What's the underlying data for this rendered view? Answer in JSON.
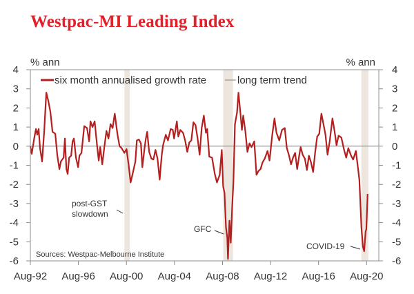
{
  "chart_data": {
    "type": "line",
    "title": "Westpac-MI Leading Index",
    "ylabel_left": "% ann",
    "ylabel_right": "% ann",
    "xlabel": "",
    "ylim": [
      -6,
      4
    ],
    "yticks": [
      4,
      3,
      2,
      1,
      0,
      -1,
      -2,
      -3,
      -4,
      -5,
      -6
    ],
    "xlim_years": [
      1992.583,
      2021.6
    ],
    "xticks": [
      {
        "label": "Aug-92",
        "year": 1992.583
      },
      {
        "label": "Aug-96",
        "year": 1996.583
      },
      {
        "label": "Aug-00",
        "year": 2000.583
      },
      {
        "label": "Aug-04",
        "year": 2004.583
      },
      {
        "label": "Aug-08",
        "year": 2008.583
      },
      {
        "label": "Aug-12",
        "year": 2012.583
      },
      {
        "label": "Aug-16",
        "year": 2016.583
      },
      {
        "label": "Aug-20",
        "year": 2020.583
      }
    ],
    "grid": false,
    "legend": {
      "placement": "top-left",
      "entries": [
        {
          "name": "six month annualised growth rate",
          "color": "#b3201f"
        },
        {
          "name": "long term trend",
          "color": "#808080"
        }
      ]
    },
    "series": [
      {
        "name": "six month annualised growth rate",
        "color": "#b3201f",
        "points": [
          [
            1992.58,
            0
          ],
          [
            1992.7,
            -0.4
          ],
          [
            1992.93,
            0.5
          ],
          [
            1993.05,
            0.9
          ],
          [
            1993.16,
            0.6
          ],
          [
            1993.27,
            0.9
          ],
          [
            1993.39,
            -0.1
          ],
          [
            1993.56,
            -0.8
          ],
          [
            1993.74,
            0.8
          ],
          [
            1993.91,
            2.8
          ],
          [
            1994.08,
            2.35
          ],
          [
            1994.25,
            1.8
          ],
          [
            1994.43,
            0.75
          ],
          [
            1994.66,
            0.65
          ],
          [
            1994.83,
            -0.5
          ],
          [
            1995.0,
            -1.2
          ],
          [
            1995.12,
            -0.8
          ],
          [
            1995.35,
            -0.6
          ],
          [
            1995.46,
            0.4
          ],
          [
            1995.58,
            -1.2
          ],
          [
            1995.69,
            -1.45
          ],
          [
            1995.81,
            -0.6
          ],
          [
            1995.98,
            -0.5
          ],
          [
            1996.1,
            0.25
          ],
          [
            1996.21,
            0.4
          ],
          [
            1996.38,
            -0.6
          ],
          [
            1996.56,
            -1.1
          ],
          [
            1996.67,
            -0.5
          ],
          [
            1996.84,
            -0.35
          ],
          [
            1997.07,
            1.05
          ],
          [
            1997.3,
            0.95
          ],
          [
            1997.48,
            0.25
          ],
          [
            1997.59,
            1.3
          ],
          [
            1997.76,
            1.0
          ],
          [
            1997.94,
            1.3
          ],
          [
            1998.11,
            0.2
          ],
          [
            1998.28,
            -0.75
          ],
          [
            1998.4,
            -0.05
          ],
          [
            1998.57,
            -0.95
          ],
          [
            1998.74,
            -0.05
          ],
          [
            1998.92,
            0.8
          ],
          [
            1999.09,
            0.4
          ],
          [
            1999.26,
            1.15
          ],
          [
            1999.43,
            0.95
          ],
          [
            1999.61,
            1.7
          ],
          [
            1999.84,
            0.6
          ],
          [
            2000.01,
            0
          ],
          [
            2000.18,
            -0.1
          ],
          [
            2000.41,
            -0.35
          ],
          [
            2000.59,
            -0.15
          ],
          [
            2000.76,
            -0.95
          ],
          [
            2000.93,
            -1.9
          ],
          [
            2001.1,
            -1.45
          ],
          [
            2001.33,
            -0.8
          ],
          [
            2001.45,
            0.3
          ],
          [
            2001.62,
            0.35
          ],
          [
            2001.79,
            0.15
          ],
          [
            2001.91,
            -1.1
          ],
          [
            2002.08,
            -0.15
          ],
          [
            2002.2,
            0.4
          ],
          [
            2002.31,
            0.75
          ],
          [
            2002.48,
            -0.3
          ],
          [
            2002.66,
            -0.65
          ],
          [
            2002.83,
            -0.7
          ],
          [
            2003.0,
            -0.2
          ],
          [
            2003.17,
            -0.65
          ],
          [
            2003.35,
            -1.75
          ],
          [
            2003.52,
            -0.5
          ],
          [
            2003.63,
            0.05
          ],
          [
            2003.86,
            0.6
          ],
          [
            2004.04,
            0.3
          ],
          [
            2004.27,
            0.9
          ],
          [
            2004.44,
            0.85
          ],
          [
            2004.55,
            0.4
          ],
          [
            2004.78,
            1.3
          ],
          [
            2004.9,
            0.5
          ],
          [
            2005.07,
            0.85
          ],
          [
            2005.3,
            0.7
          ],
          [
            2005.47,
            0.3
          ],
          [
            2005.65,
            -0.3
          ],
          [
            2005.82,
            0.2
          ],
          [
            2005.99,
            0.3
          ],
          [
            2006.16,
            1.25
          ],
          [
            2006.34,
            1.1
          ],
          [
            2006.51,
            0.4
          ],
          [
            2006.68,
            -0.45
          ],
          [
            2006.85,
            0.95
          ],
          [
            2007.03,
            1.6
          ],
          [
            2007.2,
            0.7
          ],
          [
            2007.31,
            0.9
          ],
          [
            2007.48,
            -0.55
          ],
          [
            2007.71,
            -0.6
          ],
          [
            2007.94,
            -1.45
          ],
          [
            2008.12,
            -1.9
          ],
          [
            2008.35,
            -1.5
          ],
          [
            2008.52,
            -0.2
          ],
          [
            2008.64,
            -2.1
          ],
          [
            2008.75,
            -2.45
          ],
          [
            2008.87,
            -4.25
          ],
          [
            2008.98,
            -4.8
          ],
          [
            2009.04,
            -5.9
          ],
          [
            2009.16,
            -3.9
          ],
          [
            2009.27,
            -5.05
          ],
          [
            2009.39,
            -3.2
          ],
          [
            2009.5,
            -1.75
          ],
          [
            2009.62,
            1.15
          ],
          [
            2009.79,
            1.75
          ],
          [
            2009.91,
            2.8
          ],
          [
            2010.08,
            1.7
          ],
          [
            2010.2,
            0.85
          ],
          [
            2010.31,
            1.6
          ],
          [
            2010.48,
            0.8
          ],
          [
            2010.66,
            -0.3
          ],
          [
            2010.83,
            0.15
          ],
          [
            2011.0,
            -0.05
          ],
          [
            2011.23,
            0.25
          ],
          [
            2011.41,
            -1.5
          ],
          [
            2011.58,
            -1.3
          ],
          [
            2011.75,
            -1.2
          ],
          [
            2011.92,
            -0.85
          ],
          [
            2012.1,
            -0.65
          ],
          [
            2012.33,
            -0.25
          ],
          [
            2012.5,
            -0.75
          ],
          [
            2012.73,
            0.6
          ],
          [
            2012.91,
            1.45
          ],
          [
            2013.08,
            0.7
          ],
          [
            2013.31,
            0.3
          ],
          [
            2013.54,
            0.85
          ],
          [
            2013.77,
            0.95
          ],
          [
            2013.94,
            -0.1
          ],
          [
            2014.11,
            -0.45
          ],
          [
            2014.29,
            -0.95
          ],
          [
            2014.46,
            -0.6
          ],
          [
            2014.63,
            -0.35
          ],
          [
            2014.8,
            -1.2
          ],
          [
            2014.98,
            -0.45
          ],
          [
            2015.09,
            -0.05
          ],
          [
            2015.26,
            -0.45
          ],
          [
            2015.44,
            -0.65
          ],
          [
            2015.61,
            -1.25
          ],
          [
            2015.78,
            -0.5
          ],
          [
            2015.95,
            -0.85
          ],
          [
            2016.13,
            -1.35
          ],
          [
            2016.3,
            -0.3
          ],
          [
            2016.47,
            0.5
          ],
          [
            2016.64,
            0.65
          ],
          [
            2016.82,
            1.7
          ],
          [
            2016.99,
            1.15
          ],
          [
            2017.16,
            0.6
          ],
          [
            2017.33,
            -0.45
          ],
          [
            2017.51,
            0.25
          ],
          [
            2017.74,
            1.45
          ],
          [
            2017.91,
            0.8
          ],
          [
            2018.08,
            0.05
          ],
          [
            2018.25,
            0.55
          ],
          [
            2018.48,
            0.45
          ],
          [
            2018.71,
            -0.2
          ],
          [
            2018.89,
            -0.6
          ],
          [
            2019.06,
            -0.1
          ],
          [
            2019.29,
            -0.5
          ],
          [
            2019.46,
            -0.7
          ],
          [
            2019.69,
            -0.25
          ],
          [
            2019.81,
            -0.85
          ],
          [
            2019.98,
            -1.75
          ],
          [
            2020.15,
            -4.25
          ],
          [
            2020.27,
            -5.25
          ],
          [
            2020.38,
            -5.5
          ],
          [
            2020.5,
            -4.45
          ],
          [
            2020.56,
            -4.35
          ],
          [
            2020.67,
            -2.5
          ]
        ]
      },
      {
        "name": "long term trend",
        "color": "#808080",
        "value": 0
      }
    ],
    "shaded_periods": [
      {
        "name": "post-GST slowdown",
        "start_year": 2000.41,
        "end_year": 2000.87
      },
      {
        "name": "GFC",
        "start_year": 2008.64,
        "end_year": 2009.45
      },
      {
        "name": "COVID-19",
        "start_year": 2020.15,
        "end_year": 2020.73
      }
    ],
    "annotations": [
      {
        "text_lines": [
          "post-GST",
          "slowdown"
        ],
        "target": "post-GST slowdown"
      },
      {
        "text_lines": [
          "GFC"
        ],
        "target": "GFC"
      },
      {
        "text_lines": [
          "COVID-19"
        ],
        "target": "COVID-19"
      }
    ],
    "source": "Sources: Westpac-Melbourne Institute"
  },
  "colors": {
    "title": "#e3202a",
    "series": "#b3201f",
    "trend": "#808080",
    "shade": "#ece6df",
    "axis": "#8c8c8c",
    "text": "#333333"
  }
}
